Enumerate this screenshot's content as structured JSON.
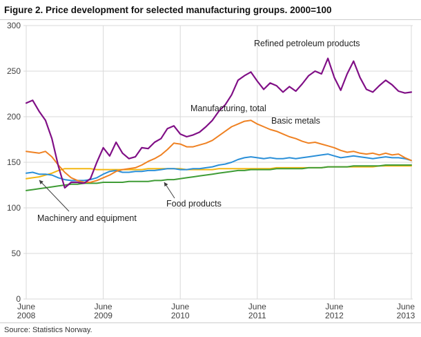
{
  "title": "Figure 2. Price development for selected manufacturing groups. 2000=100",
  "source": "Source: Statistics Norway.",
  "chart_data": {
    "type": "line",
    "title": "Figure 2. Price development for selected manufacturing groups. 2000=100",
    "xlabel": "",
    "ylabel": "",
    "x_unit": "month",
    "x_start": "2008-06",
    "x_end": "2013-06",
    "ylim": [
      0,
      300
    ],
    "y_ticks": [
      0,
      50,
      100,
      150,
      200,
      250,
      300
    ],
    "grid": true,
    "legend_position": "inline-annotations",
    "x_ticks": [
      {
        "month": "June",
        "year": "2008"
      },
      {
        "month": "June",
        "year": "2009"
      },
      {
        "month": "June",
        "year": "2010"
      },
      {
        "month": "June",
        "year": "2011"
      },
      {
        "month": "June",
        "year": "2012"
      },
      {
        "month": "June",
        "year": "2013"
      }
    ],
    "series": [
      {
        "id": "machinery-equipment",
        "name": "Machinery and equipment",
        "color": "#f3b712",
        "values": [
          132,
          133,
          134,
          136,
          138,
          141,
          143,
          143,
          143,
          143,
          143,
          142,
          142,
          142,
          142,
          142,
          142,
          142,
          142,
          143,
          143,
          143,
          143,
          143,
          143,
          142,
          142,
          142,
          142,
          142,
          143,
          143,
          143,
          143,
          143,
          143,
          143,
          143,
          143,
          144,
          144,
          144,
          144,
          144,
          144,
          144,
          144,
          145,
          145,
          145,
          145,
          145,
          145,
          145,
          145,
          146,
          146,
          146,
          146,
          146,
          146
        ]
      },
      {
        "id": "food-products",
        "name": "Food products",
        "color": "#3f9c35",
        "values": [
          119,
          120,
          121,
          122,
          123,
          124,
          125,
          126,
          126,
          127,
          127,
          127,
          128,
          128,
          128,
          128,
          129,
          129,
          129,
          129,
          130,
          130,
          131,
          131,
          132,
          133,
          134,
          135,
          136,
          137,
          138,
          139,
          140,
          141,
          141,
          142,
          142,
          142,
          142,
          143,
          143,
          143,
          143,
          143,
          144,
          144,
          144,
          145,
          145,
          145,
          145,
          146,
          146,
          146,
          146,
          146,
          147,
          147,
          147,
          147,
          147
        ]
      },
      {
        "id": "manufacturing-total",
        "name": "Manufacturing, total",
        "color": "#2a8fd8",
        "values": [
          138,
          139,
          137,
          137,
          136,
          133,
          131,
          130,
          130,
          130,
          131,
          133,
          137,
          140,
          141,
          139,
          139,
          140,
          140,
          141,
          141,
          142,
          143,
          143,
          142,
          142,
          143,
          143,
          144,
          145,
          147,
          148,
          150,
          153,
          155,
          156,
          155,
          154,
          155,
          154,
          154,
          155,
          154,
          155,
          156,
          157,
          158,
          159,
          157,
          155,
          156,
          157,
          156,
          155,
          154,
          155,
          156,
          155,
          155,
          154,
          152
        ]
      },
      {
        "id": "basic-metals",
        "name": "Basic metals",
        "color": "#ef8122",
        "values": [
          162,
          161,
          160,
          162,
          156,
          147,
          139,
          133,
          130,
          128,
          128,
          130,
          133,
          136,
          140,
          142,
          143,
          144,
          147,
          151,
          154,
          158,
          164,
          171,
          170,
          167,
          167,
          169,
          171,
          174,
          179,
          184,
          189,
          192,
          195,
          196,
          192,
          189,
          186,
          184,
          181,
          178,
          176,
          173,
          171,
          172,
          170,
          168,
          166,
          163,
          161,
          162,
          160,
          159,
          160,
          158,
          160,
          158,
          159,
          155,
          152
        ]
      },
      {
        "id": "refined-petroleum",
        "name": "Refined petroleum products",
        "color": "#800f86",
        "values": [
          215,
          218,
          206,
          196,
          176,
          146,
          122,
          128,
          128,
          127,
          132,
          150,
          166,
          157,
          172,
          160,
          154,
          156,
          166,
          165,
          172,
          176,
          187,
          190,
          181,
          178,
          180,
          183,
          189,
          196,
          206,
          213,
          224,
          240,
          245,
          249,
          239,
          230,
          237,
          234,
          227,
          233,
          228,
          236,
          245,
          250,
          247,
          264,
          243,
          229,
          247,
          261,
          243,
          230,
          227,
          234,
          240,
          235,
          228,
          226,
          227
        ]
      }
    ],
    "annotations": [
      {
        "text": "Refined petroleum products"
      },
      {
        "text": "Basic metals"
      },
      {
        "text": "Manufacturing, total"
      },
      {
        "text": "Food products"
      },
      {
        "text": "Machinery and equipment"
      }
    ]
  }
}
